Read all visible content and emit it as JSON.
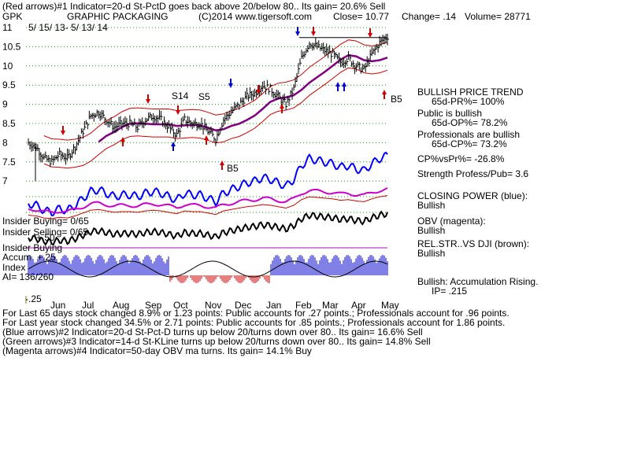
{
  "header": {
    "line1": "(Red arrows)#1 Indicator=20-d St-PctD goes back above 20/below 80.. Its gain= 20.6% Sell",
    "ticker": "GPK",
    "company": "GRAPHIC PACKAGING",
    "copyright": "(C)2014 www.tigersoft.com",
    "close": "Close= 10.77",
    "change": "Change= .14",
    "volume": "Volume= 28771",
    "date_range": "5/ 15/ 13- 5/ 13/ 14"
  },
  "chart_data": {
    "type": "line",
    "y_ticks": [
      "11",
      "10.5",
      "10",
      "9.5",
      "9",
      "8.5",
      "8",
      "7.5",
      "7"
    ],
    "ylim": [
      6.95,
      11.05
    ],
    "x_ticks": [
      "Jun",
      "Jul",
      "Aug",
      "Sep",
      "Oct",
      "Nov",
      "Dec",
      "Jan",
      "Feb",
      "Mar",
      "Apr",
      "May"
    ],
    "grid": true,
    "series": [
      {
        "values": [
          8.0,
          7.9,
          7.6,
          7.5,
          7.7,
          7.6,
          7.9,
          8.3,
          8.7,
          8.8,
          8.6,
          8.4,
          8.5,
          8.5,
          8.4,
          8.6,
          8.7,
          8.6,
          8.4,
          8.2,
          8.6,
          8.5,
          8.5,
          8.3,
          8.1,
          8.6,
          8.8,
          9.0,
          9.2,
          9.3,
          9.5,
          9.4,
          9.2,
          9.0,
          9.4,
          10.2,
          10.6,
          10.5,
          10.4,
          10.3,
          10.1,
          10.2,
          10.0,
          9.9,
          10.3,
          10.6,
          10.77
        ]
      }
    ],
    "annotations": [
      "S14",
      "S5",
      "B5",
      "B5",
      "Accum",
      "Index",
      "AI= 136/260",
      "+.25",
      "+.50",
      "-.25"
    ]
  },
  "insider": {
    "buying": "Insider Buying= 0/65",
    "selling": "Insider Selling= 0/65",
    "buying2": "Insider Buying"
  },
  "panel": {
    "trend_title": "BULLISH PRICE TREND",
    "trend_value": "65d-PR%= 100%",
    "public_title": "Public is bullish",
    "public_value": "65d-OP%= 78.2%",
    "pro_title": "Professionals are bullish",
    "pro_value": "65d-CP%= 73.2%",
    "cpvspr": "CP%vsPr%= -26.8%",
    "strength": "Strength Profess/Pub= 3.6",
    "closing_title": "CLOSING POWER (blue):",
    "closing_value": "Bullish",
    "obv_title": "OBV (magenta):",
    "obv_value": "Bullish",
    "relstr_title": "REL.STR..VS DJI (brown):",
    "relstr_value": "Bullish",
    "accum_title": "Bullish: Accumulation Rising.",
    "accum_value": "IP= .215"
  },
  "footer": {
    "line1": "For Last 65 days stock changed  8.9% or  1.23 points:  Public accounts for  .27 points.;  Professionals account for  .96 points.",
    "line2": "For Last year stock changed  34.5% or  2.71 points:  Public accounts for  .85 points.;  Professionals account for  1.86 points.",
    "line3": "(Blue arrows)#2 Indicator=20-d St-Pct-D turns up below 20/turns down over 80.. Its gain= 16.6% Sell",
    "line4": "(Green arrows)#3 Indicator=14-d St-KLine turns up below 20/turns down over 80.. Its gain= 14.8% Sell",
    "line5": "(Magenta arrows)#4 Indicator=50-day OBV ma turns. Its gain= 14.1% Buy"
  },
  "colors": {
    "price": "#000000",
    "band": "#d00000",
    "ma": "#800080",
    "cp": "#0000ff",
    "obv": "#cc00cc",
    "grid": "#00a000",
    "accum_pos": "#0000cc",
    "accum_neg": "#cc0000"
  }
}
